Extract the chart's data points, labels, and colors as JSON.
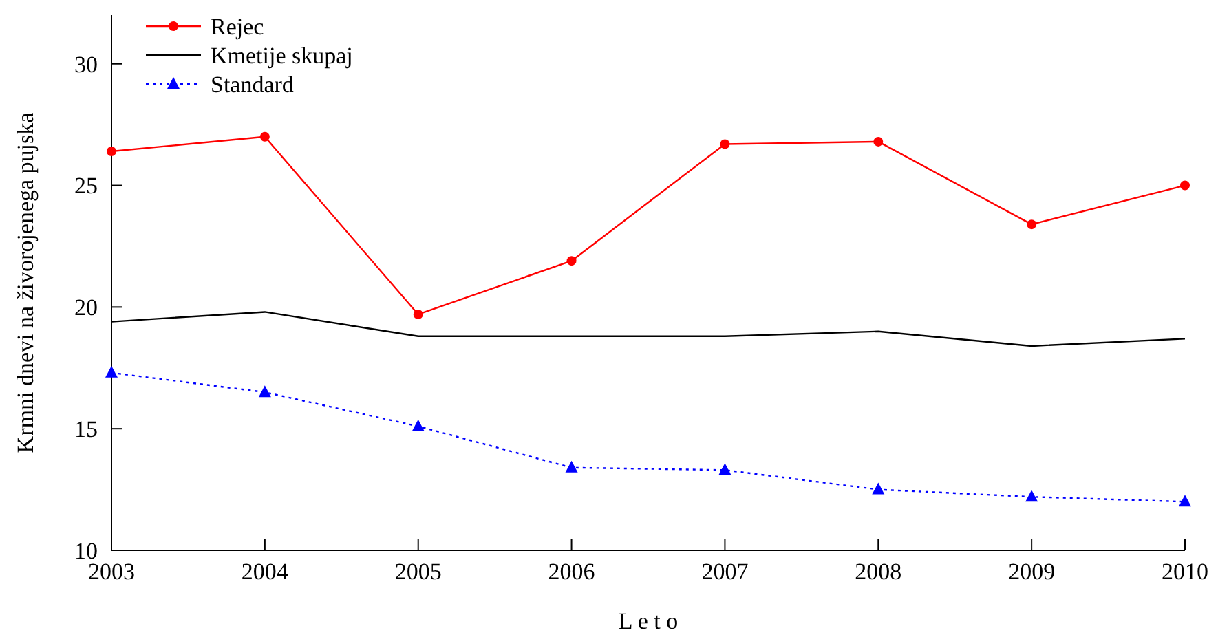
{
  "chart_data": {
    "type": "line",
    "xlabel": "L e t o",
    "ylabel": "Krmni dnevi na živorojenega pujska",
    "x": [
      2003,
      2004,
      2005,
      2006,
      2007,
      2008,
      2009,
      2010
    ],
    "xlim": [
      2003,
      2010
    ],
    "xticks": [
      2003,
      2004,
      2005,
      2006,
      2007,
      2008,
      2009,
      2010
    ],
    "ylim": [
      10,
      32
    ],
    "yticks": [
      10,
      15,
      20,
      25,
      30
    ],
    "grid": false,
    "legend": "top left",
    "series": [
      {
        "name": "Rejec",
        "color": "#ff0000",
        "marker": "circle",
        "line_style": "solid",
        "values": [
          26.4,
          27.0,
          19.7,
          21.9,
          26.7,
          26.8,
          23.4,
          25.0
        ]
      },
      {
        "name": "Kmetije skupaj",
        "color": "#000000",
        "marker": "none",
        "line_style": "solid",
        "values": [
          19.4,
          19.8,
          18.8,
          18.8,
          18.8,
          19.0,
          18.4,
          18.7
        ]
      },
      {
        "name": "Standard",
        "color": "#0000ff",
        "marker": "triangle",
        "line_style": "dotted",
        "values": [
          17.3,
          16.5,
          15.1,
          13.4,
          13.3,
          12.5,
          12.2,
          12.0
        ]
      }
    ]
  }
}
